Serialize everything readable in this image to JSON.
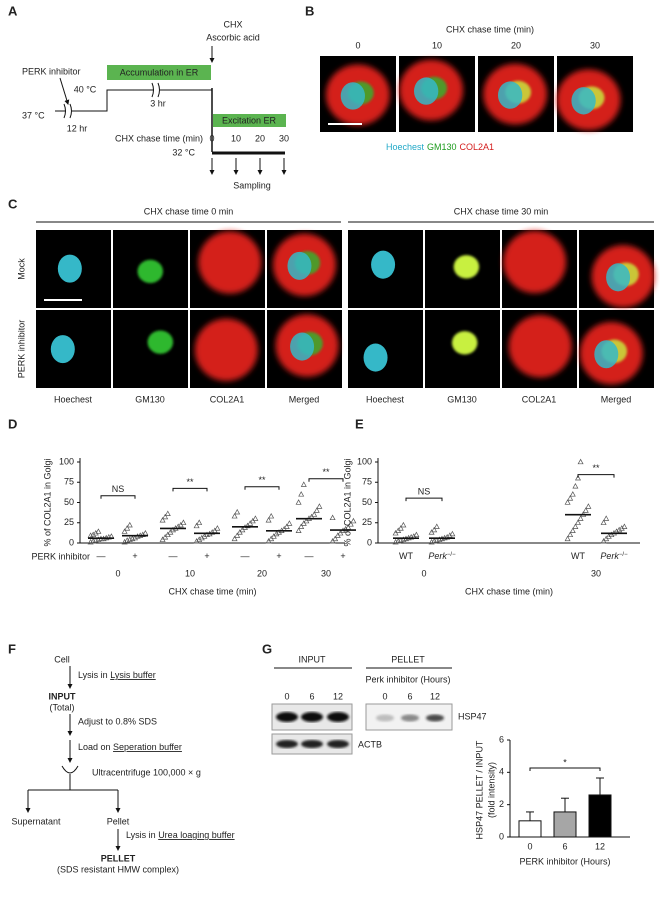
{
  "panels": {
    "A": {
      "label": "A",
      "chx": "CHX",
      "ascorbic": "Ascorbic acid",
      "perk_inhibitor": "PERK inhibitor",
      "accumulation": "Accumulation in ER",
      "excitation": "Excitation ER",
      "temp1": "37 °C",
      "temp2": "40 °C",
      "temp3": "32 °C",
      "hr12": "12 hr",
      "hr3": "3 hr",
      "chase_label": "CHX chase time (min)",
      "chase_times": [
        "0",
        "10",
        "20",
        "30"
      ],
      "sampling": "Sampling"
    },
    "B": {
      "label": "B",
      "title": "CHX chase time (min)",
      "times": [
        "0",
        "10",
        "20",
        "30"
      ],
      "legend": [
        "Hoechest",
        "GM130",
        "COL2A1"
      ]
    },
    "C": {
      "label": "C",
      "headers": [
        "CHX chase time 0 min",
        "CHX chase time 30 min"
      ],
      "rows": [
        "Mock",
        "PERK inhibitor"
      ],
      "columns": [
        "Hoechest",
        "GM130",
        "COL2A1",
        "Merged"
      ]
    },
    "F": {
      "label": "F",
      "cell": "Cell",
      "lysis": {
        "prefix": "Lysis in ",
        "underlined": "Lysis buffer"
      },
      "input": "INPUT",
      "input_sub": "(Total)",
      "adjust": "Adjust to 0.8% SDS",
      "load": {
        "prefix": "Load on ",
        "underlined": "Seperation buffer"
      },
      "ultra": "Ultracentrifuge 100,000 × g",
      "supernatant": "Supernatant",
      "pellet": "Pellet",
      "lysis2": {
        "prefix": "Lysis in ",
        "underlined": "Urea loaging buffer"
      },
      "output": "PELLET",
      "output_sub": "(SDS resistant HMW complex)"
    },
    "G": {
      "label": "G",
      "input": "INPUT",
      "pellet": "PELLET",
      "treatment": "Perk inhibitor (Hours)",
      "lanes": [
        "0",
        "6",
        "12"
      ],
      "bands": [
        "HSP47",
        "ACTB"
      ]
    }
  },
  "chart_data": [
    {
      "type": "dot",
      "label": "D",
      "ylabel": "% of COL2A1 in Golgi",
      "xlabel": "CHX chase time (min)",
      "ylim": [
        0,
        100
      ],
      "yticks": [
        0,
        25,
        50,
        75,
        100
      ],
      "row_label": "PERK inhibitor",
      "groups": [
        "0",
        "10",
        "20",
        "30"
      ],
      "categories": [
        "—",
        "+",
        "—",
        "+",
        "—",
        "+",
        "—",
        "+"
      ],
      "points": [
        [
          1,
          2,
          3,
          4,
          5,
          5,
          6,
          7,
          8,
          9,
          10,
          12,
          14
        ],
        [
          1,
          3,
          4,
          5,
          6,
          8,
          9,
          10,
          12,
          14,
          18,
          22
        ],
        [
          4,
          7,
          10,
          13,
          16,
          18,
          20,
          22,
          25,
          28,
          32,
          36
        ],
        [
          2,
          4,
          6,
          8,
          10,
          11,
          13,
          15,
          18,
          21,
          25
        ],
        [
          5,
          9,
          13,
          16,
          19,
          21,
          24,
          27,
          30,
          33,
          38
        ],
        [
          2,
          5,
          8,
          11,
          13,
          15,
          17,
          20,
          24,
          28,
          33
        ],
        [
          15,
          20,
          24,
          27,
          30,
          32,
          35,
          40,
          45,
          50,
          60,
          72
        ],
        [
          2,
          5,
          9,
          12,
          15,
          17,
          19,
          23,
          27,
          31
        ]
      ],
      "means": [
        6,
        9,
        18,
        12,
        20,
        15,
        30,
        16
      ],
      "annotations": [
        "NS",
        "**",
        "**",
        "**"
      ]
    },
    {
      "type": "dot",
      "label": "E",
      "ylabel": "% of COL2A1 in Golgi",
      "xlabel": "CHX chase time (min)",
      "ylim": [
        0,
        100
      ],
      "yticks": [
        0,
        25,
        50,
        75,
        100
      ],
      "groups": [
        "0",
        "30"
      ],
      "categories": [
        "WT",
        "Perk",
        "WT",
        "Perk"
      ],
      "category_sup": [
        null,
        "−/−",
        null,
        "−/−"
      ],
      "points": [
        [
          1,
          2,
          3,
          4,
          5,
          6,
          7,
          8,
          10,
          12,
          15,
          18,
          22
        ],
        [
          1,
          2,
          3,
          4,
          5,
          6,
          7,
          9,
          11,
          13,
          16,
          20
        ],
        [
          5,
          10,
          15,
          20,
          25,
          30,
          35,
          40,
          45,
          50,
          55,
          60,
          70,
          80,
          100
        ],
        [
          2,
          5,
          8,
          10,
          12,
          14,
          16,
          18,
          20,
          25,
          30
        ]
      ],
      "means": [
        6,
        6,
        35,
        12
      ],
      "annotations": [
        "NS",
        "**"
      ]
    },
    {
      "type": "bar",
      "ylabel": [
        "HSP47 PELLET / INPUT",
        "(fold intensity)"
      ],
      "xlabel": "PERK inhibitor (Hours)",
      "categories": [
        "0",
        "6",
        "12"
      ],
      "values": [
        1,
        1.55,
        2.6
      ],
      "errors": [
        0.55,
        0.85,
        1.05
      ],
      "colors": [
        "#ffffff",
        "#a6a6a6",
        "#000000"
      ],
      "ylim": [
        0,
        6
      ],
      "yticks": [
        0,
        2,
        4,
        6
      ],
      "annotation": "*"
    }
  ]
}
